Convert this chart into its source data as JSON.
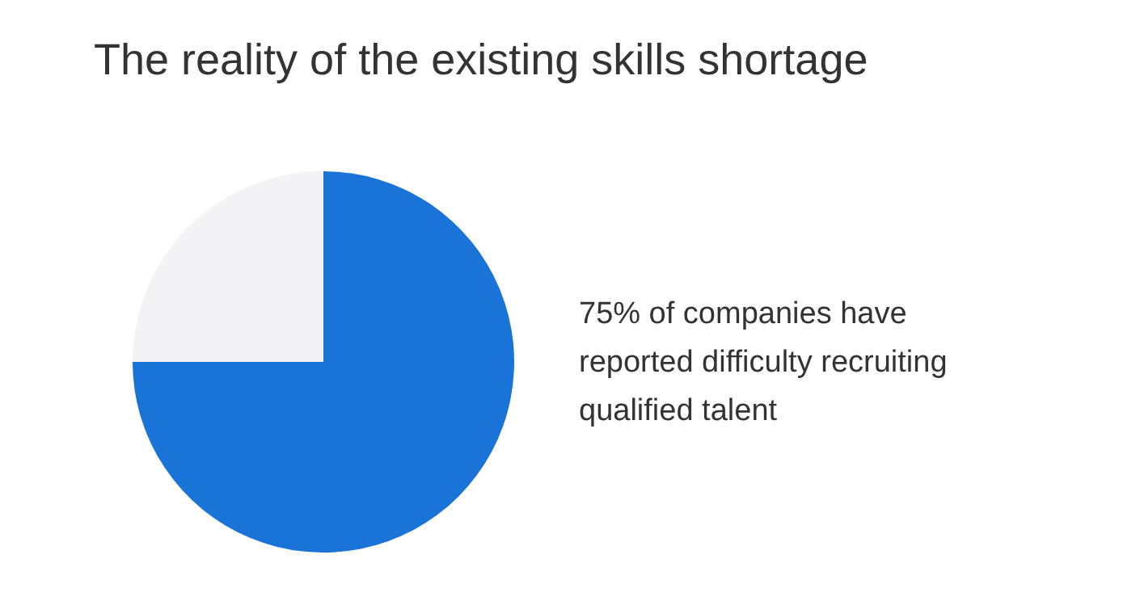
{
  "chart_data": {
    "type": "pie",
    "title": "The reality of the existing skills shortage",
    "categories": [
      null,
      null
    ],
    "values": [
      75,
      25
    ],
    "colors": [
      "#1a73d6",
      "#f3f2f4"
    ],
    "legend": false,
    "annotations": [
      "75% of companies have reported difficulty recruiting qualified talent"
    ]
  }
}
